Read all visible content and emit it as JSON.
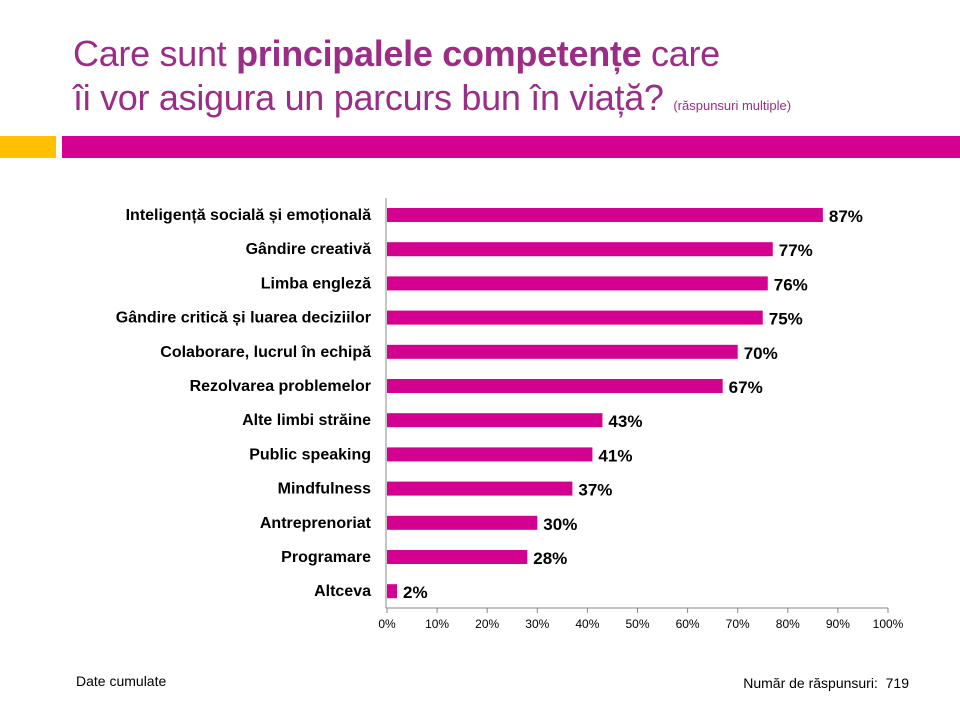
{
  "title": {
    "line1_a": "Care sunt ",
    "line1_bold": "principalele competențe",
    "line1_b": " care",
    "line2": "îi vor asigura un parcurs bun în viață? ",
    "subtitle": "(răspunsuri multiple)"
  },
  "colors": {
    "title": "#9b2d86",
    "bar": "#d4008f",
    "accent_band": "#d4008f",
    "accent_square": "#ffc000"
  },
  "chart_data": {
    "type": "bar",
    "orientation": "horizontal",
    "categories": [
      "Inteligență socială și emoțională",
      "Gândire creativă",
      "Limba engleză",
      "Gândire critică și luarea deciziilor",
      "Colaborare, lucrul în echipă",
      "Rezolvarea problemelor",
      "Alte limbi străine",
      "Public speaking",
      "Mindfulness",
      "Antreprenoriat",
      "Programare",
      "Altceva"
    ],
    "values": [
      87,
      77,
      76,
      75,
      70,
      67,
      43,
      41,
      37,
      30,
      28,
      2
    ],
    "data_labels": [
      "87%",
      "77%",
      "76%",
      "75%",
      "70%",
      "67%",
      "43%",
      "41%",
      "37%",
      "30%",
      "28%",
      "2%"
    ],
    "xlim": [
      0,
      100
    ],
    "x_ticks": [
      "0%",
      "10%",
      "20%",
      "30%",
      "40%",
      "50%",
      "60%",
      "70%",
      "80%",
      "90%",
      "100%"
    ],
    "grid": false,
    "legend": "none"
  },
  "footer": {
    "left": "Date cumulate",
    "right_label": "Număr de răspunsuri:",
    "right_value": "719"
  }
}
